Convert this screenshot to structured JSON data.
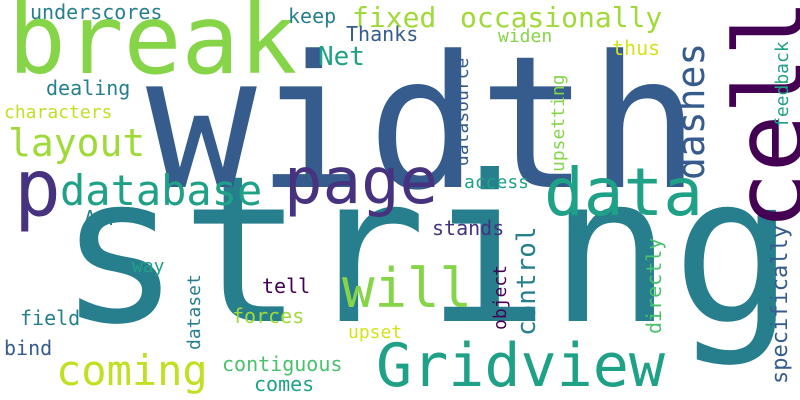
{
  "palette": {
    "dark_purple": "#440154",
    "indigo": "#46327e",
    "blue": "#365c8d",
    "teal_blue": "#277f8e",
    "teal": "#1fa187",
    "green": "#4ac16d",
    "lime": "#a0da39",
    "yellow": "#d5e21a"
  },
  "words": {
    "string": "string",
    "width": "width",
    "break": "break",
    "cell": "cell",
    "data": "data",
    "gridview": "Gridview",
    "page": "page",
    "p": "p",
    "database": "database",
    "will": "will",
    "coming": "coming",
    "dashes": "dashes",
    "layout": "layout",
    "fixed": "fixed",
    "occasionally": "occasionally",
    "underscores": "underscores",
    "net": "Net",
    "control": "control",
    "specifically": "specifically",
    "datasource": "datasource",
    "upsetting": "upsetting",
    "directly": "directly",
    "feedback": "feedback",
    "keep": "keep",
    "thanks": "Thanks",
    "widen": "widen",
    "thus": "thus",
    "dealing": "dealing",
    "characters": "characters",
    "access": "access",
    "asp": "ASP",
    "stands": "stands",
    "way": "way",
    "tell": "tell",
    "field": "field",
    "forces": "forces",
    "bind": "bind",
    "upset": "upset",
    "contiguous": "contiguous",
    "comes": "comes",
    "object": "object",
    "dataset": "dataset"
  }
}
